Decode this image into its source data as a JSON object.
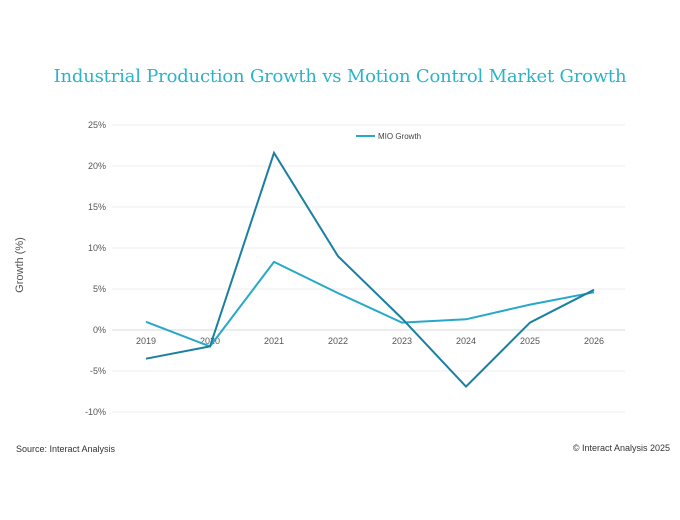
{
  "chart_data": {
    "type": "line",
    "title": "Industrial Production Growth vs Motion Control Market Growth",
    "ylabel": "Growth (%)",
    "xlabel": "",
    "ylim": [
      -10,
      25
    ],
    "y_ticks": [
      25,
      20,
      15,
      10,
      5,
      0,
      -5,
      -10
    ],
    "y_tick_labels": [
      "25%",
      "20%",
      "15%",
      "10%",
      "5%",
      "0%",
      "-5%",
      "-10%"
    ],
    "categories": [
      "2019",
      "2020",
      "2021",
      "2022",
      "2023",
      "2024",
      "2025",
      "2026"
    ],
    "series": [
      {
        "name": "MIO Growth",
        "color": "#27a8c8",
        "values": [
          1.0,
          -2.0,
          8.3,
          4.5,
          0.9,
          1.3,
          3.1,
          4.6
        ]
      },
      {
        "name": "",
        "color": "#1a7fa0",
        "values": [
          -3.5,
          -2.0,
          21.6,
          9.0,
          1.4,
          -6.9,
          0.9,
          4.9
        ]
      }
    ],
    "legend": {
      "entries": [
        "MIO Growth"
      ],
      "position": "top-center"
    },
    "grid": true
  },
  "footer": {
    "source": "Source: Interact Analysis",
    "copyright": "© Interact Analysis 2025"
  }
}
